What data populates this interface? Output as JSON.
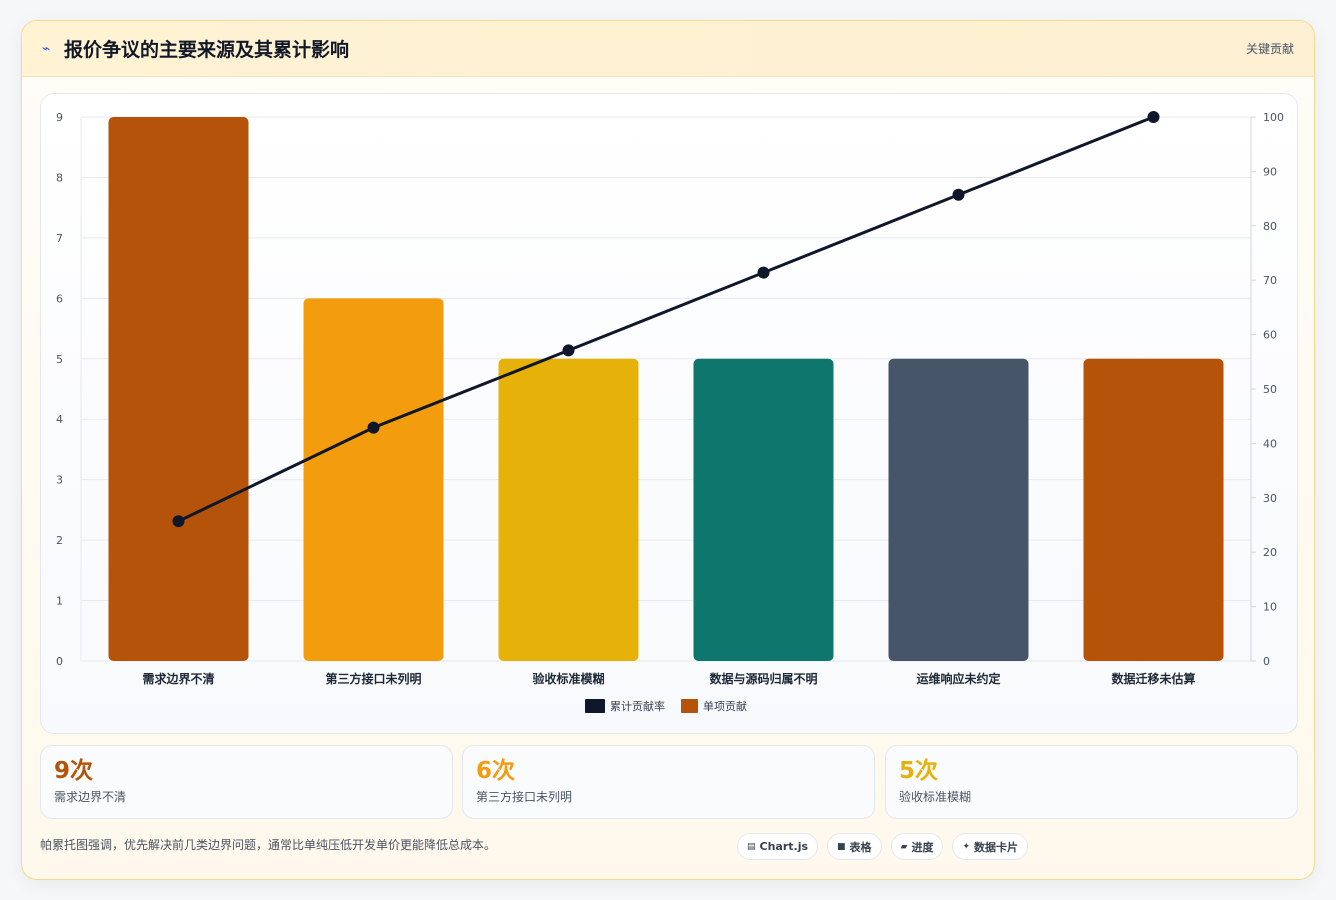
{
  "header": {
    "icon": "lightning-icon",
    "title": "报价争议的主要来源及其累计影响",
    "tag": "关键贡献"
  },
  "chart_data": {
    "type": "bar",
    "categories": [
      "需求边界不清",
      "第三方接口未列明",
      "验收标准模糊",
      "数据与源码归属不明",
      "运维响应未约定",
      "数据迁移未估算"
    ],
    "series": [
      {
        "name": "单项贡献",
        "type": "bar",
        "axis": "left",
        "values": [
          9,
          6,
          5,
          5,
          5,
          5
        ],
        "colors": [
          "#b45309",
          "#f39c0e",
          "#e6b20a",
          "#0f766e",
          "#475569",
          "#b45309"
        ]
      },
      {
        "name": "累计贡献率",
        "type": "line",
        "axis": "right",
        "values": [
          25.7,
          42.9,
          57.1,
          71.4,
          85.7,
          100
        ],
        "color": "#0f172a"
      }
    ],
    "left_ticks": [
      "0",
      "1",
      "2",
      "3",
      "4",
      "5",
      "6",
      "7",
      "8",
      "9"
    ],
    "right_ticks": [
      "0",
      "10",
      "20",
      "30",
      "40",
      "50",
      "60",
      "70",
      "80",
      "90",
      "100"
    ],
    "ylim": [
      0,
      9
    ],
    "y2lim": [
      0,
      100
    ],
    "grid": true,
    "legend": [
      "累计贡献率",
      "单项贡献"
    ],
    "legend_position": "bottom"
  },
  "kpis": [
    {
      "value": "9次",
      "label": "需求边界不清",
      "color": "#b45309"
    },
    {
      "value": "6次",
      "label": "第三方接口未列明",
      "color": "#f39c0e"
    },
    {
      "value": "5次",
      "label": "验收标准模糊",
      "color": "#e6b20a"
    }
  ],
  "footer": {
    "note": "帕累托图强调，优先解决前几类边界问题，通常比单纯压低开发单价更能降低总成本。",
    "pills": [
      {
        "icon": "chart-icon",
        "label": "Chart.js"
      },
      {
        "icon": "table-icon",
        "label": "表格"
      },
      {
        "icon": "progress-icon",
        "label": "进度"
      },
      {
        "icon": "sparkle-icon",
        "label": "数据卡片"
      }
    ]
  }
}
